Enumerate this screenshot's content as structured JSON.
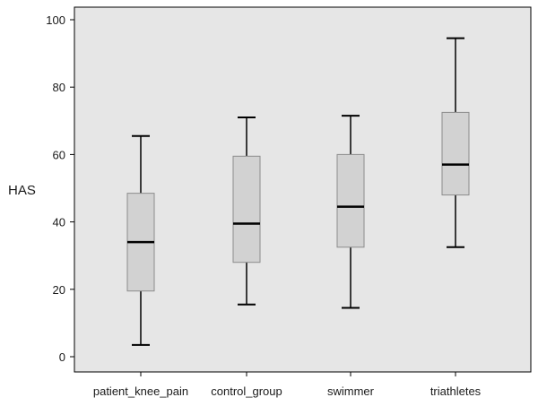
{
  "chart_data": {
    "type": "boxplot",
    "title": "",
    "xlabel": "",
    "ylabel": "HAS",
    "ylim": [
      -2,
      103
    ],
    "yticks": [
      0,
      20,
      40,
      60,
      80,
      100
    ],
    "grid": false,
    "categories": [
      "patient_knee_pain",
      "control_group",
      "swimmer",
      "triathletes"
    ],
    "boxes": [
      {
        "category": "patient_knee_pain",
        "min": 3.5,
        "q1": 19.5,
        "median": 34,
        "q3": 48.5,
        "max": 65.5
      },
      {
        "category": "control_group",
        "min": 15.5,
        "q1": 28,
        "median": 39.5,
        "q3": 59.5,
        "max": 71
      },
      {
        "category": "swimmer",
        "min": 14.5,
        "q1": 32.5,
        "median": 44.5,
        "q3": 60,
        "max": 71.5
      },
      {
        "category": "triathletes",
        "min": 32.5,
        "q1": 48,
        "median": 57,
        "q3": 72.5,
        "max": 94.5
      }
    ]
  },
  "colors": {
    "plot_background": "#e6e6e6",
    "box_fill": "#d2d2d2",
    "box_stroke": "#8c8c8c",
    "median": "#000000",
    "whisker": "#000000",
    "axis": "#000000"
  }
}
